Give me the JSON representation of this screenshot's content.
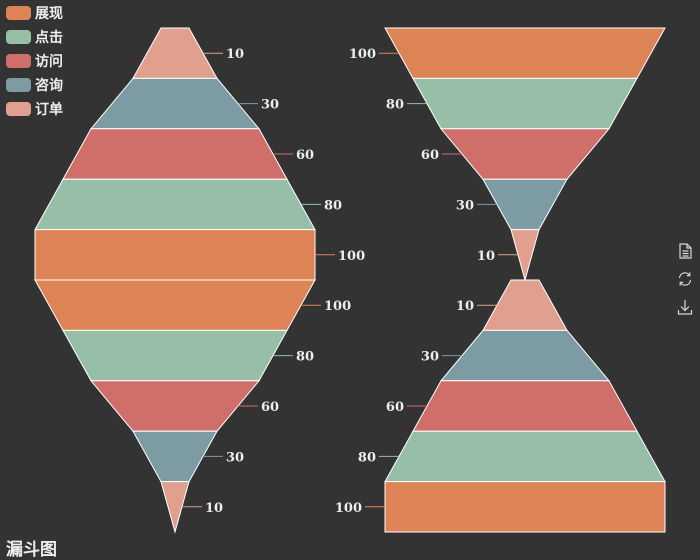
{
  "title": "漏斗图",
  "legend": [
    {
      "name": "展现",
      "color": "#dd8355"
    },
    {
      "name": "点击",
      "color": "#97bfa8"
    },
    {
      "name": "访问",
      "color": "#d06f6a"
    },
    {
      "name": "咨询",
      "color": "#7c9ba2"
    },
    {
      "name": "订单",
      "color": "#e1a08e"
    }
  ],
  "toolbox": [
    {
      "name": "data-view-icon"
    },
    {
      "name": "restore-icon"
    },
    {
      "name": "save-image-icon"
    }
  ],
  "chart_data": [
    {
      "type": "funnel",
      "sort": "ascending",
      "categories": [
        "展现",
        "点击",
        "访问",
        "咨询",
        "订单"
      ],
      "values": [
        100,
        80,
        60,
        30,
        10
      ]
    },
    {
      "type": "funnel",
      "sort": "descending",
      "categories": [
        "展现",
        "点击",
        "访问",
        "咨询",
        "订单"
      ],
      "values": [
        100,
        80,
        60,
        30,
        10
      ]
    },
    {
      "type": "funnel",
      "sort": "descending",
      "categories": [
        "展现",
        "点击",
        "访问",
        "咨询",
        "订单"
      ],
      "values": [
        100,
        80,
        60,
        30,
        10
      ]
    },
    {
      "type": "funnel",
      "sort": "ascending",
      "categories": [
        "展现",
        "点击",
        "访问",
        "咨询",
        "订单"
      ],
      "values": [
        100,
        80,
        60,
        30,
        10
      ]
    }
  ]
}
